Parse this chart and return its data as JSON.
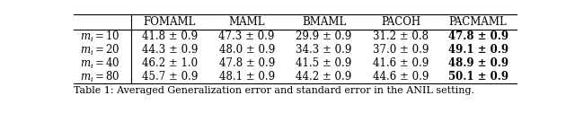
{
  "columns": [
    "FOMAML",
    "MAML",
    "BMAML",
    "PACOH",
    "PACMAML"
  ],
  "row_labels": [
    "$m_i = 10$",
    "$m_i = 20$",
    "$m_i = 40$",
    "$m_i = 80$"
  ],
  "data": [
    [
      "41.8 ± 0.9",
      "47.3 ± 0.9",
      "29.9 ± 0.9",
      "31.2 ± 0.8",
      "47.8 ± 0.9"
    ],
    [
      "44.3 ± 0.9",
      "48.0 ± 0.9",
      "34.3 ± 0.9",
      "37.0 ± 0.9",
      "49.1 ± 0.9"
    ],
    [
      "46.2 ± 1.0",
      "47.8 ± 0.9",
      "41.5 ± 0.9",
      "41.6 ± 0.9",
      "48.9 ± 0.9"
    ],
    [
      "45.7 ± 0.9",
      "48.1 ± 0.9",
      "44.2 ± 0.9",
      "44.6 ± 0.9",
      "50.1 ± 0.9"
    ]
  ],
  "bold_col": 4,
  "caption": "Table 1: Averaged Generalization error and standard error in the ANIL setting.",
  "figsize": [
    6.4,
    1.26
  ],
  "dpi": 100,
  "font_size": 8.5,
  "header_font_size": 8.5,
  "caption_font_size": 8.0,
  "row_label_font_size": 8.5
}
